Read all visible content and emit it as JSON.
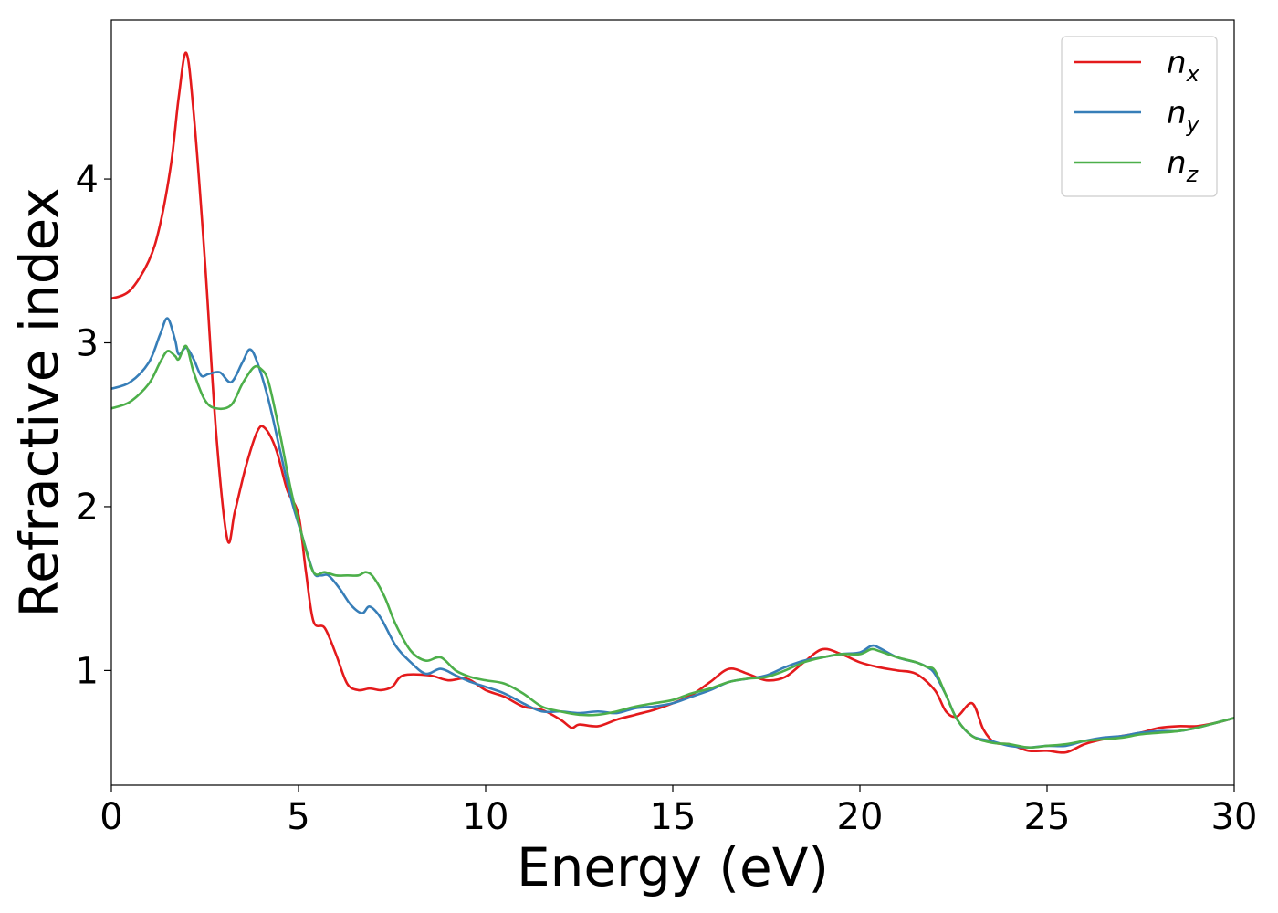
{
  "chart_data": {
    "type": "line",
    "xlabel": "Energy (eV)",
    "ylabel": "Refractive index",
    "xlim": [
      0,
      30
    ],
    "ylim": [
      0.3,
      4.97
    ],
    "xticks": [
      0,
      5,
      10,
      15,
      20,
      25,
      30
    ],
    "yticks": [
      1,
      2,
      3,
      4
    ],
    "grid": false,
    "legend_position": "top-right",
    "series": [
      {
        "name": "n_x",
        "base": "n",
        "sub": "x",
        "color": "#e41a1c",
        "x": [
          0,
          0.5,
          1.0,
          1.3,
          1.6,
          1.8,
          2.0,
          2.2,
          2.5,
          2.8,
          3.1,
          3.3,
          3.6,
          3.9,
          4.1,
          4.4,
          4.7,
          5.0,
          5.2,
          5.4,
          5.7,
          6.0,
          6.3,
          6.6,
          6.9,
          7.2,
          7.5,
          7.8,
          8.5,
          9.0,
          9.5,
          10.0,
          10.5,
          11.0,
          11.5,
          12.0,
          12.3,
          12.5,
          13.0,
          13.5,
          14.0,
          14.5,
          15.0,
          15.5,
          16.0,
          16.5,
          17.0,
          17.5,
          18.0,
          18.5,
          19.0,
          19.5,
          20.0,
          20.5,
          21.0,
          21.5,
          22.0,
          22.3,
          22.6,
          23.0,
          23.3,
          23.6,
          24.0,
          24.5,
          25.0,
          25.5,
          26.0,
          26.5,
          27.0,
          27.5,
          28.0,
          28.5,
          29.0,
          29.5,
          30.0
        ],
        "y": [
          3.27,
          3.32,
          3.5,
          3.72,
          4.1,
          4.5,
          4.77,
          4.4,
          3.5,
          2.45,
          1.8,
          1.97,
          2.25,
          2.46,
          2.48,
          2.35,
          2.1,
          1.95,
          1.6,
          1.3,
          1.26,
          1.1,
          0.92,
          0.88,
          0.89,
          0.88,
          0.9,
          0.97,
          0.97,
          0.94,
          0.95,
          0.88,
          0.84,
          0.78,
          0.76,
          0.7,
          0.65,
          0.67,
          0.66,
          0.7,
          0.73,
          0.76,
          0.8,
          0.85,
          0.93,
          1.01,
          0.98,
          0.94,
          0.96,
          1.05,
          1.13,
          1.1,
          1.05,
          1.02,
          1.0,
          0.98,
          0.88,
          0.75,
          0.72,
          0.8,
          0.64,
          0.56,
          0.55,
          0.51,
          0.51,
          0.5,
          0.55,
          0.58,
          0.6,
          0.62,
          0.65,
          0.66,
          0.66,
          0.68,
          0.71
        ]
      },
      {
        "name": "n_y",
        "base": "n",
        "sub": "y",
        "color": "#377eb8",
        "x": [
          0,
          0.5,
          1.0,
          1.3,
          1.5,
          1.7,
          1.8,
          2.0,
          2.2,
          2.4,
          2.6,
          2.9,
          3.2,
          3.5,
          3.7,
          3.9,
          4.2,
          4.5,
          4.8,
          5.1,
          5.4,
          5.6,
          5.8,
          6.1,
          6.4,
          6.7,
          6.9,
          7.2,
          7.6,
          8.0,
          8.4,
          8.8,
          9.2,
          9.6,
          10.0,
          10.5,
          11.0,
          11.5,
          12.0,
          12.5,
          13.0,
          13.5,
          14.0,
          14.5,
          15.0,
          15.5,
          16.0,
          16.5,
          17.0,
          17.5,
          18.0,
          18.5,
          19.0,
          19.5,
          20.0,
          20.3,
          20.5,
          21.0,
          21.5,
          21.8,
          22.0,
          22.3,
          22.6,
          23.0,
          23.5,
          24.0,
          24.5,
          25.0,
          25.5,
          26.0,
          26.5,
          27.0,
          27.5,
          28.0,
          28.5,
          29.0,
          29.5,
          30.0
        ],
        "y": [
          2.72,
          2.76,
          2.88,
          3.05,
          3.15,
          3.02,
          2.93,
          2.97,
          2.9,
          2.8,
          2.81,
          2.82,
          2.76,
          2.88,
          2.96,
          2.88,
          2.65,
          2.35,
          2.05,
          1.82,
          1.6,
          1.58,
          1.58,
          1.5,
          1.4,
          1.35,
          1.39,
          1.32,
          1.15,
          1.05,
          0.98,
          1.01,
          0.97,
          0.93,
          0.9,
          0.86,
          0.8,
          0.75,
          0.75,
          0.74,
          0.75,
          0.74,
          0.77,
          0.78,
          0.8,
          0.84,
          0.88,
          0.93,
          0.95,
          0.97,
          1.02,
          1.06,
          1.08,
          1.1,
          1.11,
          1.15,
          1.14,
          1.08,
          1.05,
          1.02,
          0.98,
          0.85,
          0.7,
          0.6,
          0.57,
          0.54,
          0.53,
          0.54,
          0.54,
          0.57,
          0.59,
          0.6,
          0.62,
          0.63,
          0.63,
          0.65,
          0.68,
          0.71
        ]
      },
      {
        "name": "n_z",
        "base": "n",
        "sub": "z",
        "color": "#4daf4a",
        "x": [
          0,
          0.5,
          1.0,
          1.3,
          1.5,
          1.7,
          1.8,
          2.0,
          2.2,
          2.5,
          2.8,
          3.2,
          3.5,
          3.8,
          4.0,
          4.2,
          4.5,
          4.8,
          5.1,
          5.4,
          5.7,
          6.0,
          6.3,
          6.6,
          6.8,
          7.0,
          7.3,
          7.6,
          8.0,
          8.4,
          8.8,
          9.2,
          9.6,
          10.0,
          10.5,
          11.0,
          11.5,
          12.0,
          12.5,
          13.0,
          13.5,
          14.0,
          14.5,
          15.0,
          15.5,
          16.0,
          16.5,
          17.0,
          17.5,
          18.0,
          18.5,
          19.0,
          19.5,
          20.0,
          20.3,
          20.5,
          21.0,
          21.5,
          21.8,
          22.0,
          22.3,
          22.6,
          23.0,
          23.5,
          24.0,
          24.5,
          25.0,
          25.5,
          26.0,
          26.5,
          27.0,
          27.5,
          28.0,
          28.5,
          29.0,
          29.5,
          30.0
        ],
        "y": [
          2.6,
          2.64,
          2.75,
          2.88,
          2.95,
          2.92,
          2.9,
          2.98,
          2.82,
          2.65,
          2.6,
          2.62,
          2.75,
          2.85,
          2.84,
          2.76,
          2.45,
          2.1,
          1.82,
          1.6,
          1.6,
          1.58,
          1.58,
          1.58,
          1.6,
          1.57,
          1.45,
          1.28,
          1.12,
          1.06,
          1.08,
          1.0,
          0.96,
          0.94,
          0.92,
          0.86,
          0.78,
          0.75,
          0.73,
          0.73,
          0.75,
          0.78,
          0.8,
          0.82,
          0.86,
          0.89,
          0.93,
          0.95,
          0.96,
          1.0,
          1.05,
          1.08,
          1.1,
          1.1,
          1.13,
          1.12,
          1.08,
          1.05,
          1.02,
          1.0,
          0.85,
          0.7,
          0.6,
          0.56,
          0.55,
          0.53,
          0.54,
          0.55,
          0.57,
          0.58,
          0.59,
          0.61,
          0.62,
          0.63,
          0.65,
          0.68,
          0.71
        ]
      }
    ]
  }
}
